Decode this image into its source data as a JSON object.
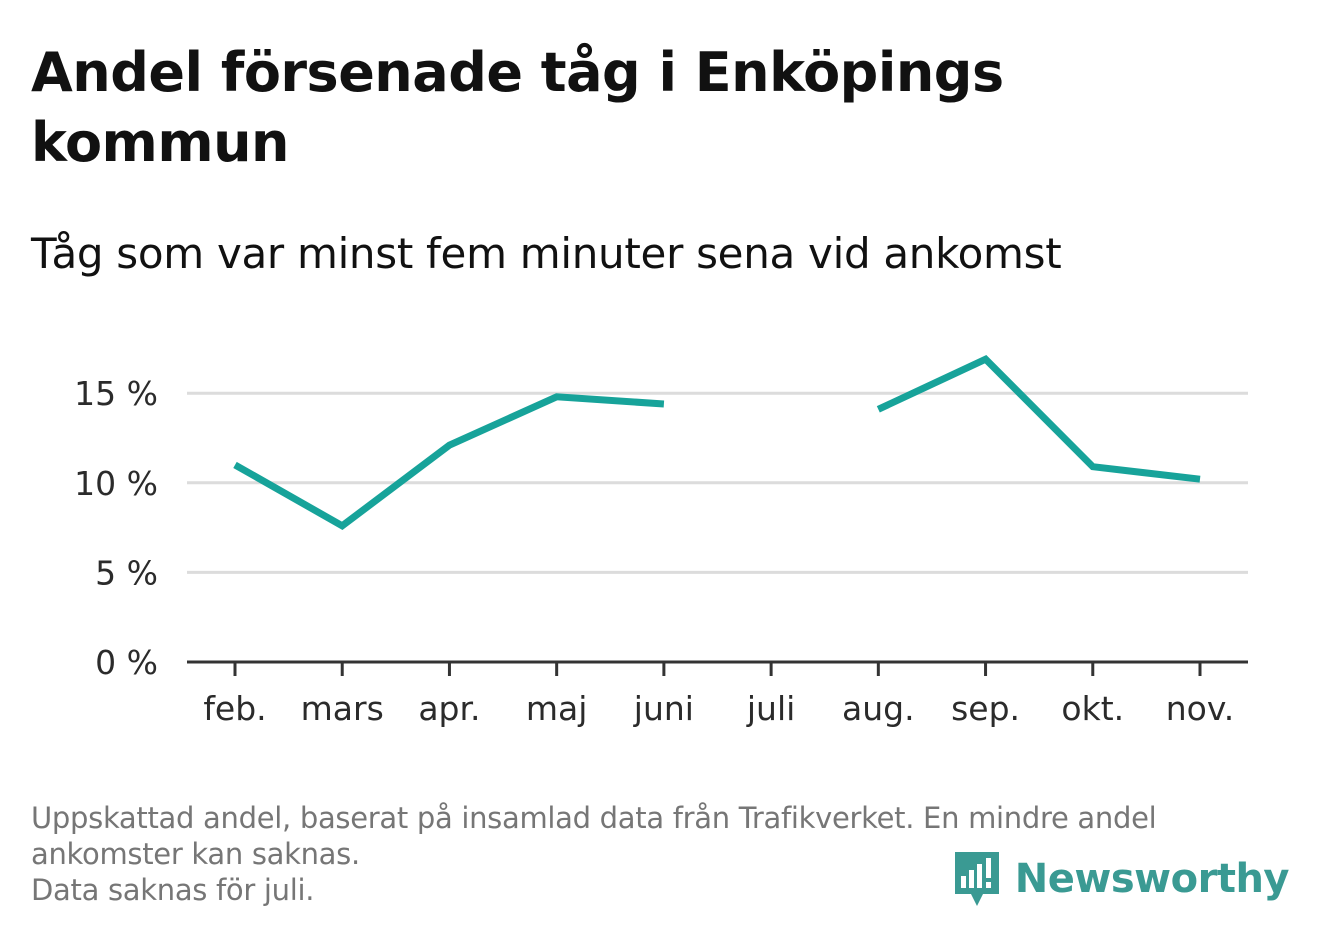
{
  "title": "Andel försenade tåg i Enköpings kommun",
  "subtitle": "Tåg som var minst fem minuter sena vid ankomst",
  "footer": {
    "lines": [
      "Uppskattad andel, baserat på insamlad data från Trafikverket. En mindre andel",
      "ankomster kan saknas.",
      "Data saknas för juli."
    ]
  },
  "brand": {
    "name": "Newsworthy",
    "logo_icon": "bar-chart-speech-bubble-icon"
  },
  "colors": {
    "line": "#17a39a",
    "grid": "#dcdcdc",
    "axis": "#333333",
    "brand": "#3a9a93",
    "footer_text": "#767676"
  },
  "chart_data": {
    "type": "line",
    "title": "Andel försenade tåg i Enköpings kommun",
    "subtitle": "Tåg som var minst fem minuter sena vid ankomst",
    "categories": [
      "feb.",
      "mars",
      "apr.",
      "maj",
      "juni",
      "juli",
      "aug.",
      "sep.",
      "okt.",
      "nov."
    ],
    "series": [
      {
        "values": [
          11.0,
          7.6,
          12.1,
          14.8,
          14.4,
          null,
          14.1,
          16.9,
          10.9,
          10.2
        ]
      }
    ],
    "yticks": [
      0,
      5,
      10,
      15
    ],
    "ytick_labels": [
      "0 %",
      "5 %",
      "10 %",
      "15 %"
    ],
    "ylim": [
      0,
      17.5
    ],
    "grid": true,
    "legend": "none"
  }
}
